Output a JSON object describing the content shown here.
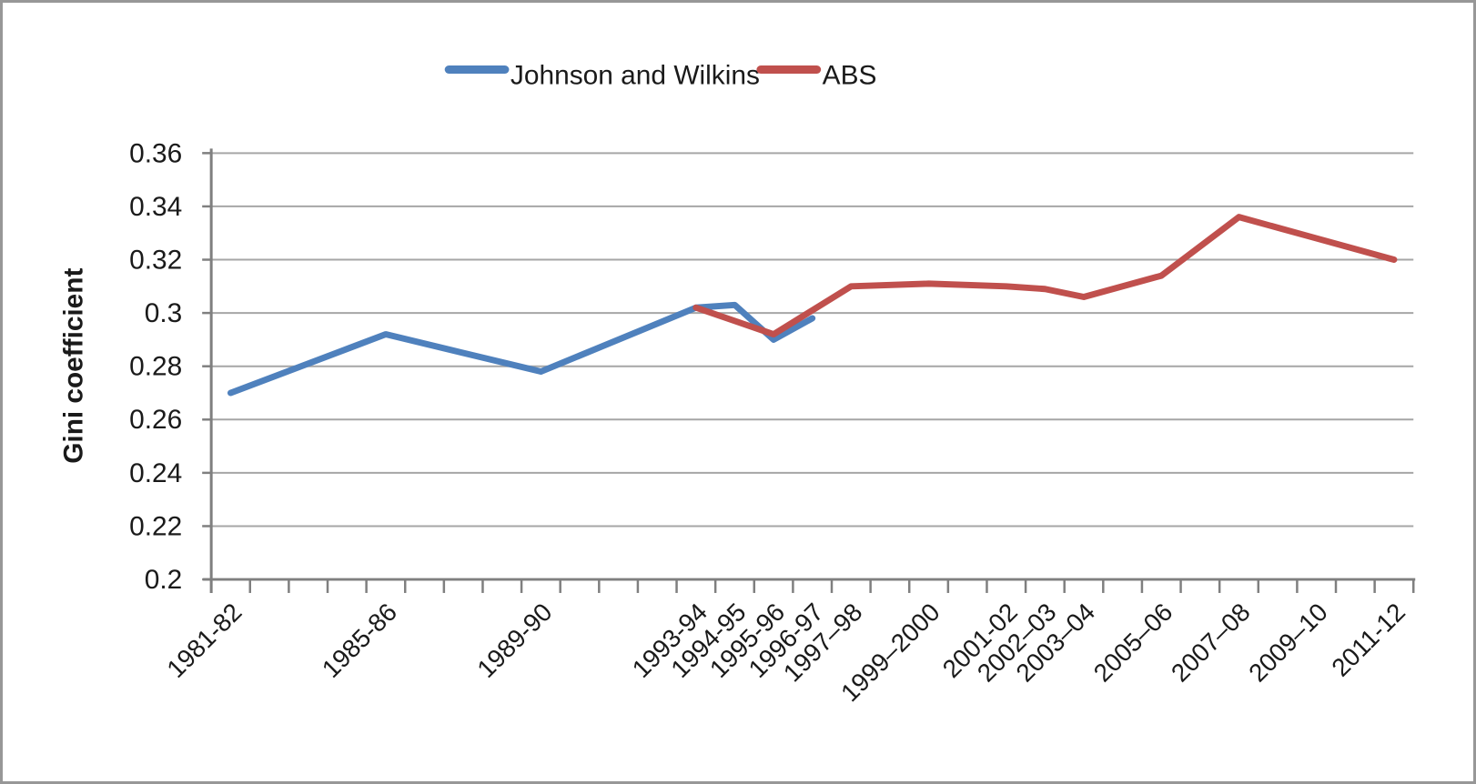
{
  "window": {
    "background_color": "#FFFFFF",
    "border_color": "#979797"
  },
  "chart_data": {
    "type": "line",
    "title": "",
    "xlabel": "",
    "ylabel": "Gini coefficient",
    "ylim": [
      0.2,
      0.36
    ],
    "ytick_step": 0.02,
    "ytick_labels": [
      "0.2",
      "0.22",
      "0.24",
      "0.26",
      "0.28",
      "0.3",
      "0.32",
      "0.34",
      "0.36"
    ],
    "grid": true,
    "legend_position": "top-center",
    "n_categories": 31,
    "x_tick_labels": [
      {
        "index": 0,
        "label": "1981-82"
      },
      {
        "index": 4,
        "label": "1985-86"
      },
      {
        "index": 8,
        "label": "1989-90"
      },
      {
        "index": 12,
        "label": "1993-94"
      },
      {
        "index": 13,
        "label": "1994-95"
      },
      {
        "index": 14,
        "label": "1995-96"
      },
      {
        "index": 15,
        "label": "1996-97"
      },
      {
        "index": 16,
        "label": "1997–98"
      },
      {
        "index": 18,
        "label": "1999–2000"
      },
      {
        "index": 20,
        "label": "2001-02"
      },
      {
        "index": 21,
        "label": "2002–03"
      },
      {
        "index": 22,
        "label": "2003–04"
      },
      {
        "index": 24,
        "label": "2005–06"
      },
      {
        "index": 26,
        "label": "2007–08"
      },
      {
        "index": 28,
        "label": "2009–10"
      },
      {
        "index": 30,
        "label": "2011-12"
      }
    ],
    "series": [
      {
        "name": "Johnson and Wilkins",
        "color": "#4F81BD",
        "points": [
          {
            "index": 0,
            "x": "1981-82",
            "value": 0.27
          },
          {
            "index": 4,
            "x": "1985-86",
            "value": 0.292
          },
          {
            "index": 8,
            "x": "1989-90",
            "value": 0.278
          },
          {
            "index": 12,
            "x": "1993-94",
            "value": 0.302
          },
          {
            "index": 13,
            "x": "1994-95",
            "value": 0.303
          },
          {
            "index": 14,
            "x": "1995-96",
            "value": 0.29
          },
          {
            "index": 15,
            "x": "1996-97",
            "value": 0.298
          }
        ]
      },
      {
        "name": "ABS",
        "color": "#C0504D",
        "points": [
          {
            "index": 12,
            "x": "1993-94",
            "value": 0.302
          },
          {
            "index": 13,
            "x": "1994-95",
            "value": 0.297
          },
          {
            "index": 14,
            "x": "1995-96",
            "value": 0.292
          },
          {
            "index": 15,
            "x": "1996-97",
            "value": 0.301
          },
          {
            "index": 16,
            "x": "1997–98",
            "value": 0.31
          },
          {
            "index": 18,
            "x": "1999–2000",
            "value": 0.311
          },
          {
            "index": 20,
            "x": "2001-02",
            "value": 0.31
          },
          {
            "index": 21,
            "x": "2002–03",
            "value": 0.309
          },
          {
            "index": 22,
            "x": "2003–04",
            "value": 0.306
          },
          {
            "index": 24,
            "x": "2005–06",
            "value": 0.314
          },
          {
            "index": 26,
            "x": "2007–08",
            "value": 0.336
          },
          {
            "index": 28,
            "x": "2009–10",
            "value": 0.328
          },
          {
            "index": 30,
            "x": "2011-12",
            "value": 0.32
          }
        ]
      }
    ]
  }
}
